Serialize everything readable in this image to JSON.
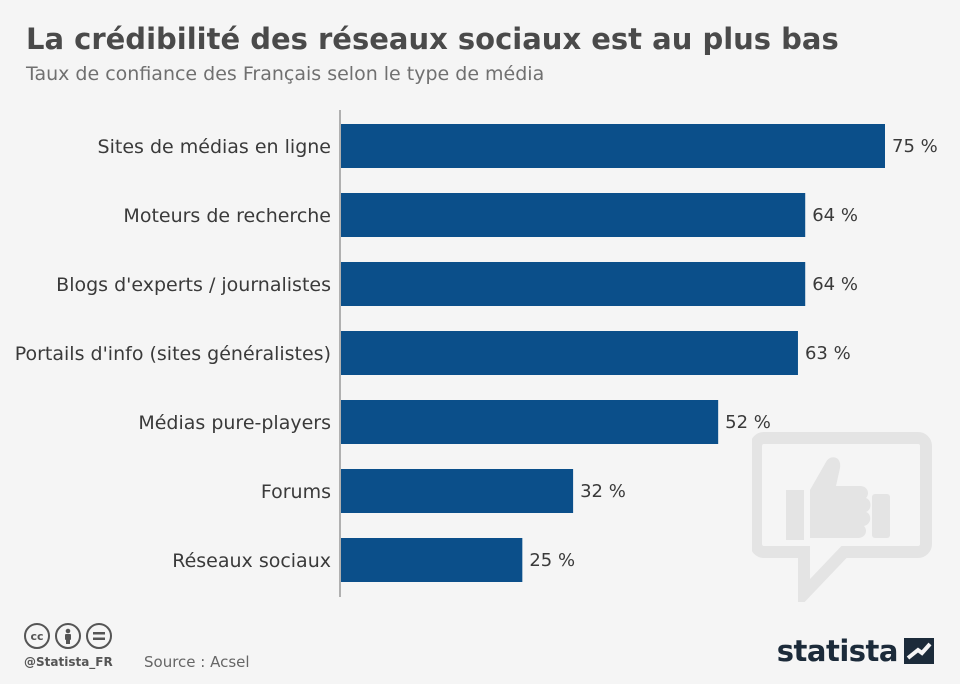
{
  "header": {
    "title": "La crédibilité des réseaux sociaux est au plus bas",
    "subtitle": "Taux de confiance des Français selon le type de média"
  },
  "chart_data": {
    "type": "bar",
    "orientation": "horizontal",
    "title": "La crédibilité des réseaux sociaux est au plus bas",
    "subtitle": "Taux de confiance des Français selon le type de média",
    "categories": [
      "Sites de médias en ligne",
      "Moteurs de recherche",
      "Blogs d'experts / journalistes",
      "Portails d'info (sites généralistes)",
      "Médias pure-players",
      "Forums",
      "Réseaux sociaux"
    ],
    "values": [
      75,
      64,
      64,
      63,
      52,
      32,
      25
    ],
    "value_labels": [
      "75 %",
      "64 %",
      "64 %",
      "63 %",
      "52 %",
      "32 %",
      "25 %"
    ],
    "unit": "%",
    "xlim": [
      0,
      75
    ],
    "bar_color": "#0b4f8a",
    "grid": false
  },
  "footer": {
    "handle": "@Statista_FR",
    "source": "Source : Acsel",
    "brand": "statista",
    "license_icons": [
      "cc-icon",
      "attribution-icon",
      "no-derivatives-icon"
    ]
  },
  "colors": {
    "background": "#f5f5f5",
    "bar": "#0b4f8a",
    "title": "#4a4a4a",
    "decoration": "#e4e4e4"
  }
}
